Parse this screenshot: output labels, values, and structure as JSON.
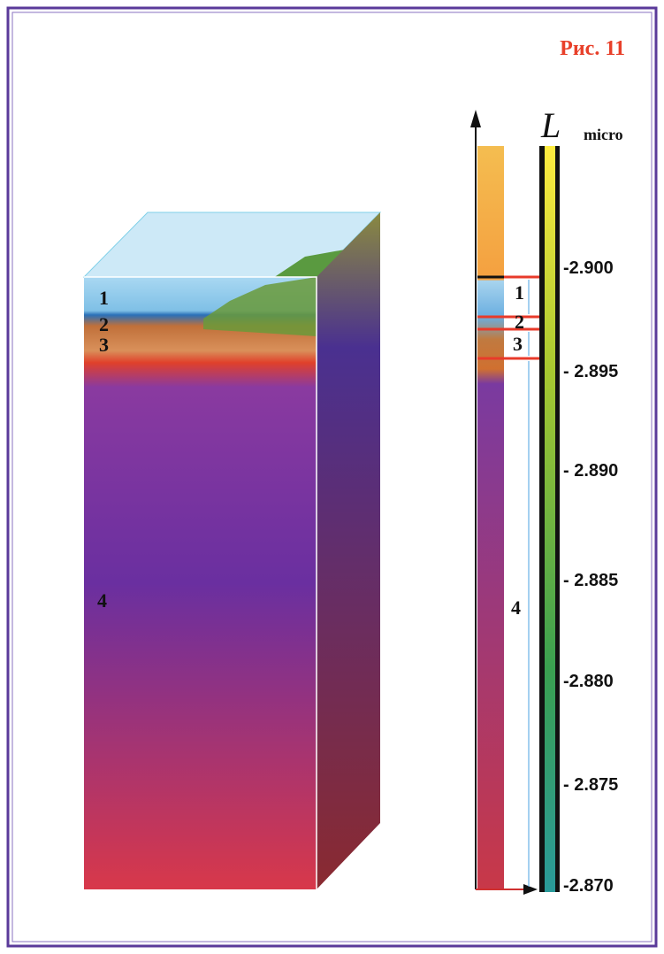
{
  "figure": {
    "title": "Рис. 11",
    "scale": {
      "symbol": "L",
      "subscript": "micro",
      "ticks": [
        "-2.900",
        "- 2.895",
        "- 2.890",
        "- 2.885",
        "-2.880",
        "- 2.875",
        "-2.870"
      ]
    },
    "block_labels": [
      "1",
      "2",
      "3",
      "4"
    ],
    "column_labels": [
      "1",
      "2",
      "3",
      "4"
    ]
  }
}
